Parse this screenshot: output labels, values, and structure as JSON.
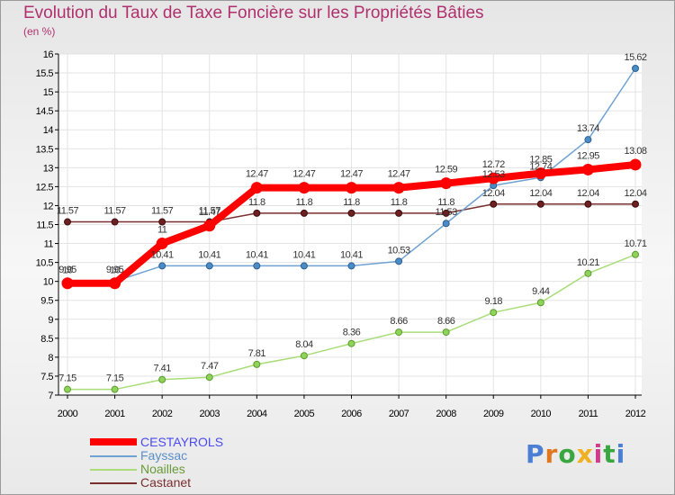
{
  "chart_data": {
    "type": "line",
    "title": "Evolution du Taux de Taxe Foncière sur les Propriétés Bâties",
    "subtitle": "(en %)",
    "xlabel": "",
    "ylabel": "",
    "x": [
      "2000",
      "2001",
      "2002",
      "2003",
      "2004",
      "2005",
      "2006",
      "2007",
      "2008",
      "2009",
      "2010",
      "2011",
      "2012"
    ],
    "ylim": [
      7,
      16
    ],
    "y_ticks": [
      "7",
      "7.5",
      "8",
      "8.5",
      "9",
      "9.5",
      "10",
      "10.5",
      "11",
      "11.5",
      "12",
      "12.5",
      "13",
      "13.5",
      "14",
      "14.5",
      "15",
      "15.5",
      "16"
    ],
    "grid": true,
    "legend_position": "bottom-left",
    "series": [
      {
        "name": "CESTAYROLS",
        "color": "#ff0000",
        "labels": [
          "9.95",
          "9.95",
          "11",
          "11.47",
          "12.47",
          "12.47",
          "12.47",
          "12.47",
          "12.59",
          "12.72",
          "12.85",
          "12.95",
          "13.08"
        ],
        "values": [
          9.95,
          9.95,
          11,
          11.47,
          12.47,
          12.47,
          12.47,
          12.47,
          12.59,
          12.72,
          12.85,
          12.95,
          13.08
        ]
      },
      {
        "name": "Fayssac",
        "color": "#6fa2d2",
        "labels": [
          "10",
          "10",
          "10.41",
          "10.41",
          "10.41",
          "10.41",
          "10.41",
          "10.53",
          "11.53",
          "12.53",
          "12.74",
          "13.74",
          "15.62"
        ],
        "values": [
          10,
          10,
          10.41,
          10.41,
          10.41,
          10.41,
          10.41,
          10.53,
          11.53,
          12.53,
          12.74,
          13.74,
          15.62
        ]
      },
      {
        "name": "Noailles",
        "color": "#a8dd78",
        "labels": [
          "7.15",
          "7.15",
          "7.41",
          "7.47",
          "7.81",
          "8.04",
          "8.36",
          "8.66",
          "8.66",
          "9.18",
          "9.44",
          "10.21",
          "10.71"
        ],
        "values": [
          7.15,
          7.15,
          7.41,
          7.47,
          7.81,
          8.04,
          8.36,
          8.66,
          8.66,
          9.18,
          9.44,
          10.21,
          10.71
        ]
      },
      {
        "name": "Castanet",
        "color": "#7a2f2f",
        "labels": [
          "11.57",
          "11.57",
          "11.57",
          "11.57",
          "11.8",
          "11.8",
          "11.8",
          "11.8",
          "11.8",
          "12.04",
          "12.04",
          "12.04",
          "12.04"
        ],
        "values": [
          11.57,
          11.57,
          11.57,
          11.57,
          11.8,
          11.8,
          11.8,
          11.8,
          11.8,
          12.04,
          12.04,
          12.04,
          12.04
        ]
      }
    ]
  },
  "logo": {
    "text": "Proxiti",
    "colors": [
      "#4a7fd4",
      "#e07820",
      "#3aa640",
      "#f0b020",
      "#d23a8a",
      "#3aa640",
      "#4a7fd4"
    ]
  }
}
